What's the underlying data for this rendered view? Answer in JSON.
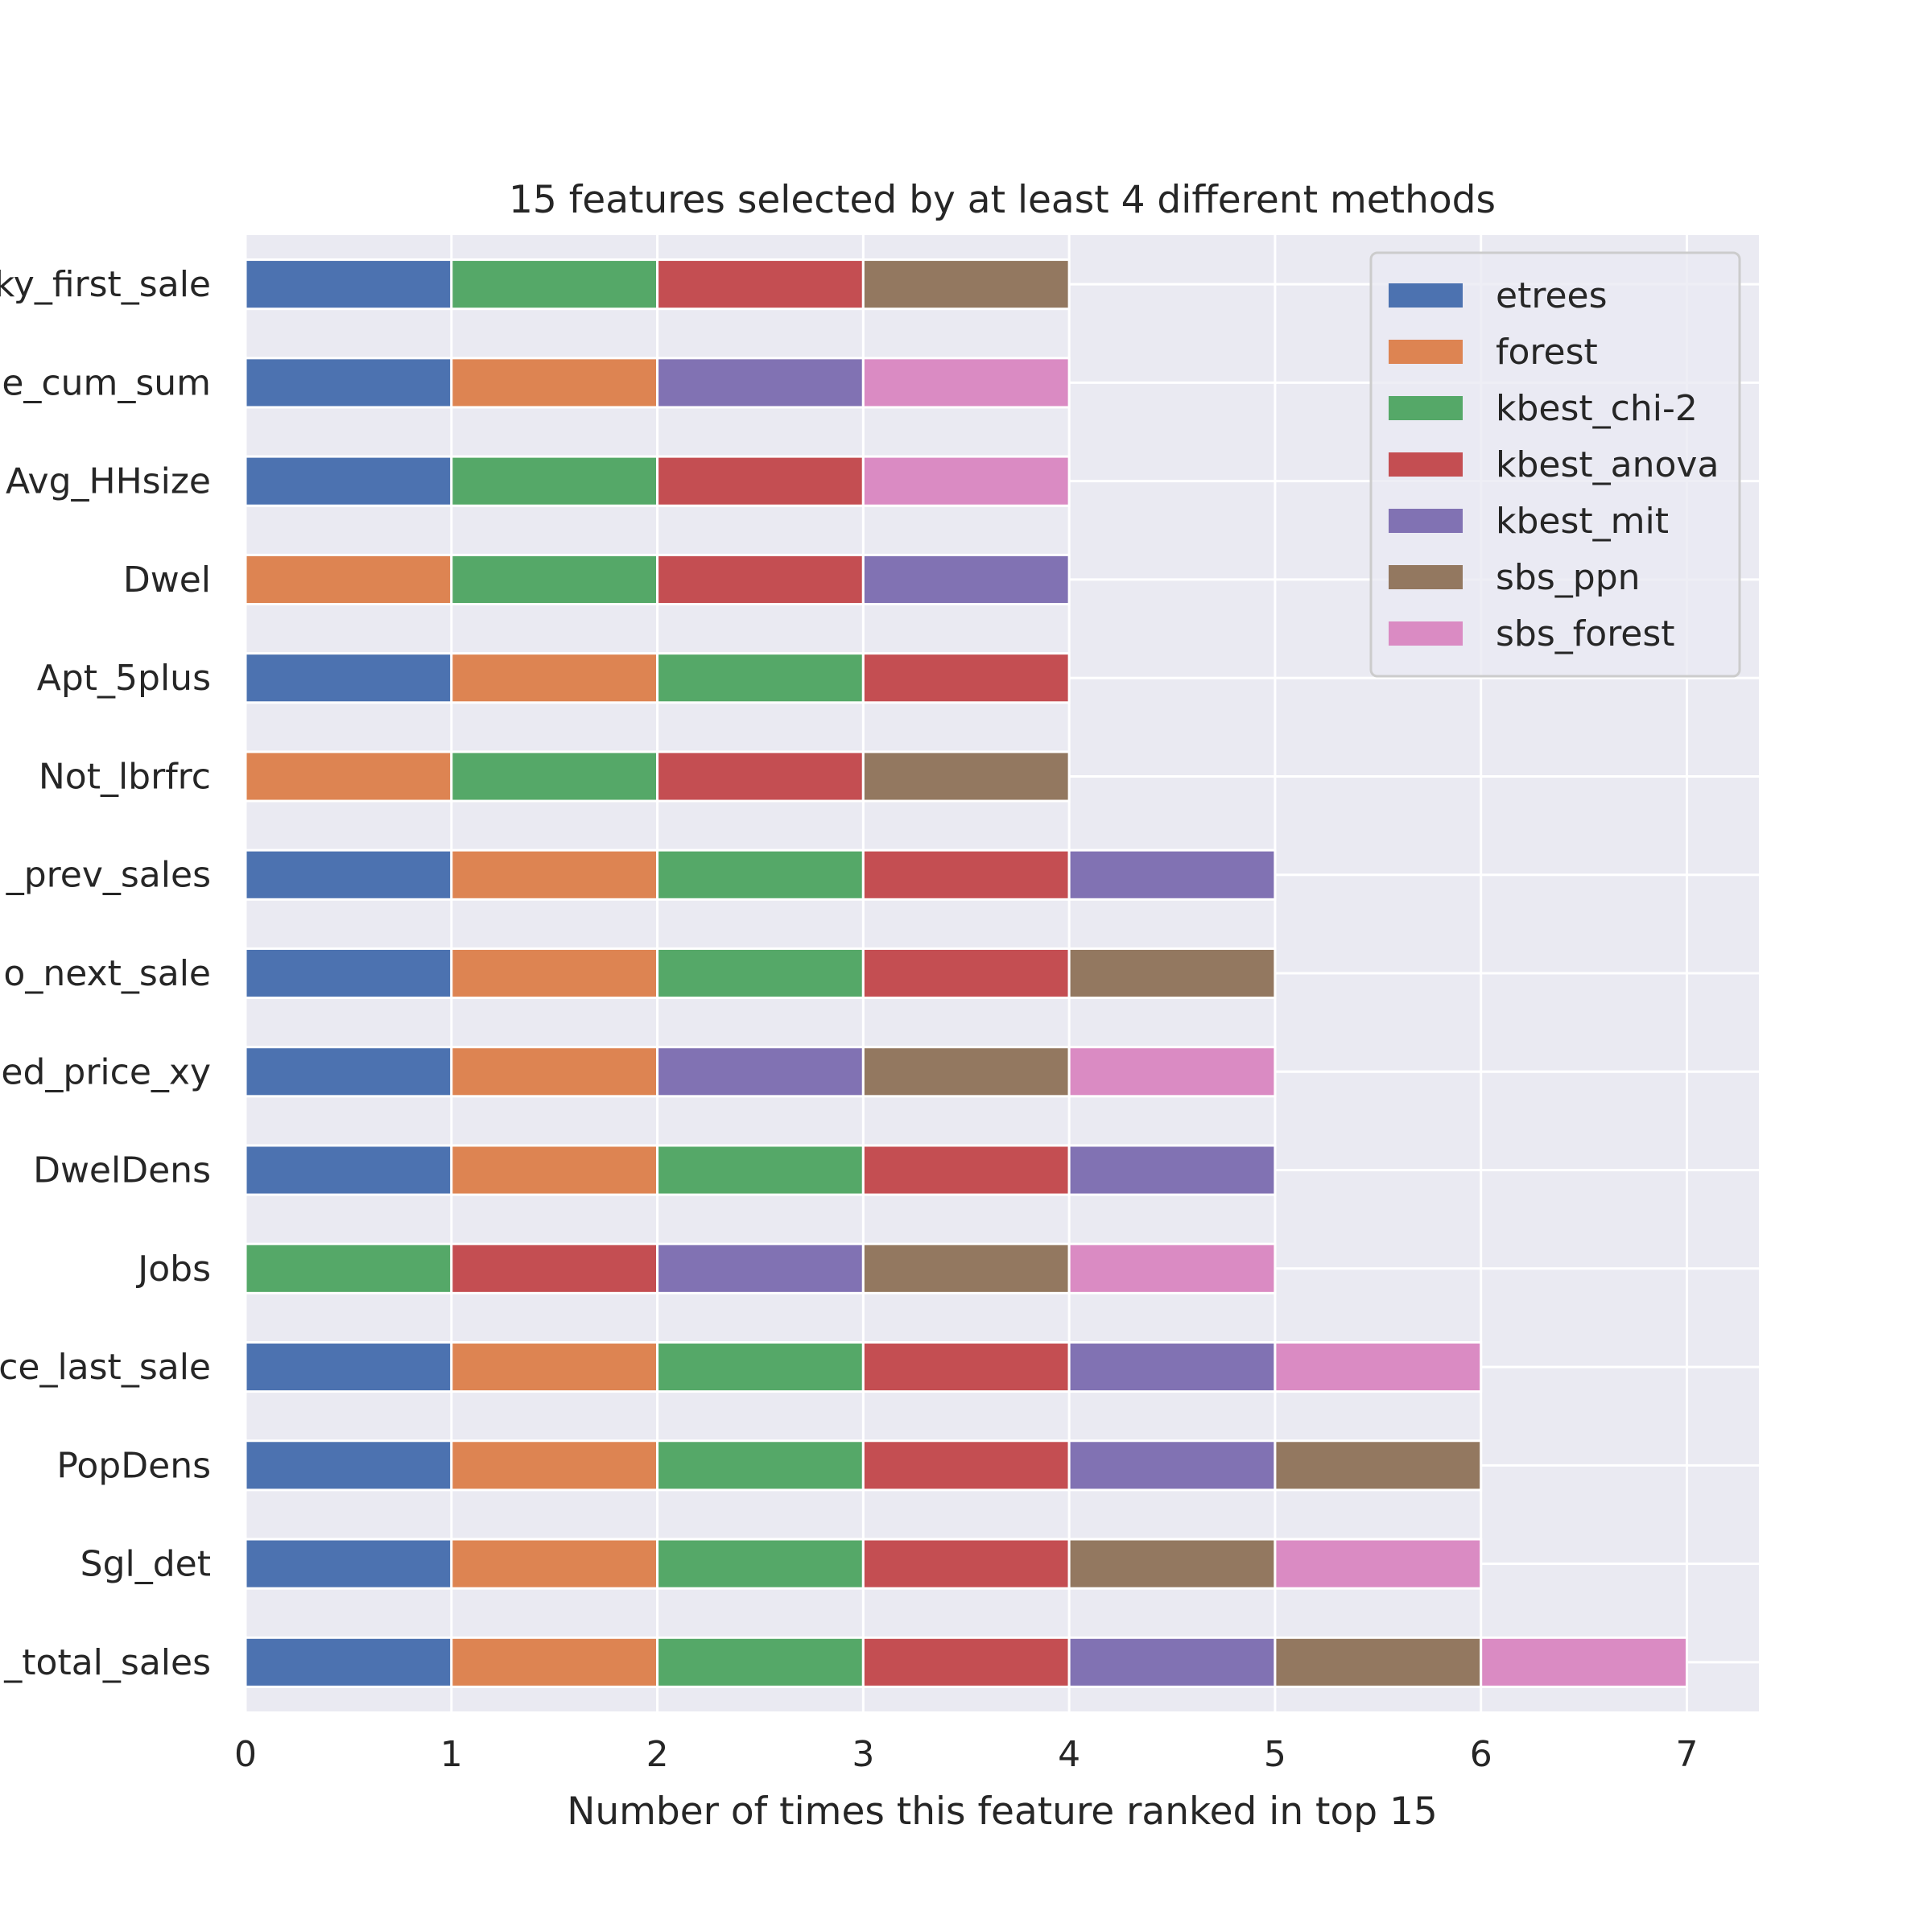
{
  "chart_data": {
    "type": "bar",
    "orientation": "horizontal",
    "stacked": true,
    "title": "15 features selected by at least 4 different methods",
    "xlabel": "Number of times this feature ranked in top 15",
    "ylabel": "",
    "xlim": [
      0,
      7.35
    ],
    "xticks": [
      0,
      1,
      2,
      3,
      4,
      5,
      6,
      7
    ],
    "grid": true,
    "legend_position": "top-right",
    "categories": [
      "ky_first_sale",
      "e_cum_sum",
      "Avg_HHsize",
      "Dwel",
      "Apt_5plus",
      "Not_lbrfrc",
      "_prev_sales",
      "o_next_sale",
      "ed_price_xy",
      "DwelDens",
      "Jobs",
      "ce_last_sale",
      "PopDens",
      "Sgl_det",
      "_total_sales"
    ],
    "series": [
      {
        "name": "etrees",
        "color": "#4c72b0",
        "values": [
          1,
          1,
          1,
          0,
          1,
          0,
          1,
          1,
          1,
          1,
          0,
          1,
          1,
          1,
          1
        ]
      },
      {
        "name": "forest",
        "color": "#dd8452",
        "values": [
          0,
          1,
          0,
          1,
          1,
          1,
          1,
          1,
          1,
          1,
          0,
          1,
          1,
          1,
          1
        ]
      },
      {
        "name": "kbest_chi-2",
        "color": "#55a868",
        "values": [
          1,
          0,
          1,
          1,
          1,
          1,
          1,
          1,
          0,
          1,
          1,
          1,
          1,
          1,
          1
        ]
      },
      {
        "name": "kbest_anova",
        "color": "#c44e52",
        "values": [
          1,
          0,
          1,
          1,
          1,
          1,
          1,
          1,
          0,
          1,
          1,
          1,
          1,
          1,
          1
        ]
      },
      {
        "name": "kbest_mit",
        "color": "#8172b3",
        "values": [
          0,
          1,
          0,
          1,
          0,
          0,
          1,
          0,
          1,
          1,
          1,
          1,
          1,
          0,
          1
        ]
      },
      {
        "name": "sbs_ppn",
        "color": "#937860",
        "values": [
          1,
          0,
          0,
          0,
          0,
          1,
          0,
          1,
          1,
          0,
          1,
          0,
          1,
          1,
          1
        ]
      },
      {
        "name": "sbs_forest",
        "color": "#da8bc3",
        "values": [
          0,
          1,
          1,
          0,
          0,
          0,
          0,
          0,
          1,
          0,
          1,
          1,
          0,
          1,
          1
        ]
      }
    ]
  }
}
